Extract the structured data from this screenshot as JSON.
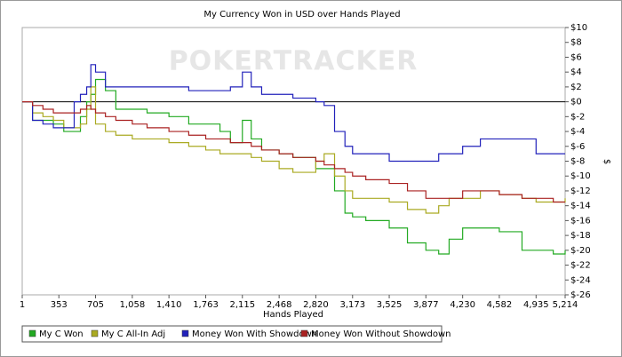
{
  "chart_data": {
    "type": "line",
    "title": "My Currency Won in USD over Hands Played",
    "watermark": "POKERTRACKER",
    "x_label": "Hands Played",
    "y_label": "$",
    "xlim": [
      1,
      5214
    ],
    "xticks": [
      1,
      353,
      705,
      {
        "value": 1058,
        "label": "1,058"
      },
      {
        "value": 1410,
        "label": "1,410"
      },
      {
        "value": 1763,
        "label": "1,763"
      },
      {
        "value": 2115,
        "label": "2,115"
      },
      {
        "value": 2468,
        "label": "2,468"
      },
      {
        "value": 2820,
        "label": "2,820"
      },
      {
        "value": 3173,
        "label": "3,173"
      },
      {
        "value": 3525,
        "label": "3,525"
      },
      {
        "value": 3877,
        "label": "3,877"
      },
      {
        "value": 4230,
        "label": "4,230"
      },
      {
        "value": 4582,
        "label": "4,582"
      },
      {
        "value": 4935,
        "label": "4,935"
      },
      {
        "value": 5214,
        "label": "5,214"
      }
    ],
    "ylim": [
      -26,
      10
    ],
    "yticks": [
      {
        "value": 10,
        "label": "$10"
      },
      {
        "value": 8,
        "label": "$8"
      },
      {
        "value": 6,
        "label": "$6"
      },
      {
        "value": 4,
        "label": "$4"
      },
      {
        "value": 2,
        "label": "$2"
      },
      {
        "value": 0,
        "label": "$0"
      },
      {
        "value": -2,
        "label": "$-2"
      },
      {
        "value": -4,
        "label": "$-4"
      },
      {
        "value": -6,
        "label": "$-6"
      },
      {
        "value": -8,
        "label": "$-8"
      },
      {
        "value": -10,
        "label": "$-10"
      },
      {
        "value": -12,
        "label": "$-12"
      },
      {
        "value": -14,
        "label": "$-14"
      },
      {
        "value": -16,
        "label": "$-16"
      },
      {
        "value": -18,
        "label": "$-18"
      },
      {
        "value": -20,
        "label": "$-20"
      },
      {
        "value": -22,
        "label": "$-22"
      },
      {
        "value": -24,
        "label": "$-24"
      },
      {
        "value": -26,
        "label": "$-26"
      }
    ],
    "x": [
      1,
      100,
      200,
      300,
      400,
      500,
      560,
      620,
      660,
      705,
      800,
      900,
      1058,
      1200,
      1410,
      1600,
      1763,
      1900,
      2000,
      2115,
      2200,
      2300,
      2468,
      2600,
      2820,
      2900,
      3000,
      3100,
      3173,
      3300,
      3525,
      3700,
      3877,
      4000,
      4100,
      4230,
      4400,
      4582,
      4800,
      4935,
      5100,
      5214
    ],
    "series": [
      {
        "name": "My C Won",
        "color": "#22aa22",
        "values": [
          0,
          -2.5,
          -2.5,
          -3,
          -4,
          -4,
          -2,
          0,
          1,
          3,
          1.5,
          -1,
          -1,
          -1.5,
          -2,
          -3,
          -3,
          -4,
          -5.5,
          -2.5,
          -5,
          -6.5,
          -7,
          -7.5,
          -9,
          -9,
          -12,
          -15,
          -15.5,
          -16,
          -17,
          -19,
          -20,
          -20.5,
          -18.5,
          -17,
          -17,
          -17.5,
          -20,
          -20,
          -20.5,
          -20
        ]
      },
      {
        "name": "My C All-In Adj",
        "color": "#aaaa22",
        "values": [
          0,
          -1.5,
          -2,
          -2.5,
          -3.5,
          -3.5,
          -3,
          -1,
          2,
          -3,
          -4,
          -4.5,
          -5,
          -5,
          -5.5,
          -6,
          -6.5,
          -7,
          -7,
          -7,
          -7.5,
          -8,
          -9,
          -9.5,
          -8,
          -7,
          -10,
          -12,
          -13,
          -13,
          -13.5,
          -14.5,
          -15,
          -14,
          -13,
          -13,
          -12,
          -12.5,
          -13,
          -13.5,
          -13.5,
          -13
        ]
      },
      {
        "name": "Money Won With Showdown",
        "color": "#2222bb",
        "values": [
          0,
          -2.5,
          -3,
          -3.5,
          -3.5,
          0,
          1,
          2,
          5,
          4,
          2,
          2,
          2,
          2,
          2,
          1.5,
          1.5,
          1.5,
          2,
          4,
          2,
          1,
          1,
          0.5,
          0,
          -0.5,
          -4,
          -6,
          -7,
          -7,
          -8,
          -8,
          -8,
          -7,
          -7,
          -6,
          -5,
          -5,
          -5,
          -7,
          -7,
          -7
        ]
      },
      {
        "name": "Money Won Without Showdown",
        "color": "#aa2222",
        "values": [
          0,
          -0.5,
          -1,
          -1.5,
          -1.5,
          -1.5,
          -1,
          -0.5,
          -1,
          -1.5,
          -2,
          -2.5,
          -3,
          -3.5,
          -4,
          -4.5,
          -5,
          -5,
          -5.5,
          -5.5,
          -6,
          -6.5,
          -7,
          -7.5,
          -8,
          -8.5,
          -9,
          -9.5,
          -10,
          -10.5,
          -11,
          -12,
          -13,
          -13,
          -13,
          -12,
          -12,
          -12.5,
          -13,
          -13,
          -13.5,
          -13.5
        ]
      }
    ],
    "grid": false,
    "legend": "bottom"
  }
}
